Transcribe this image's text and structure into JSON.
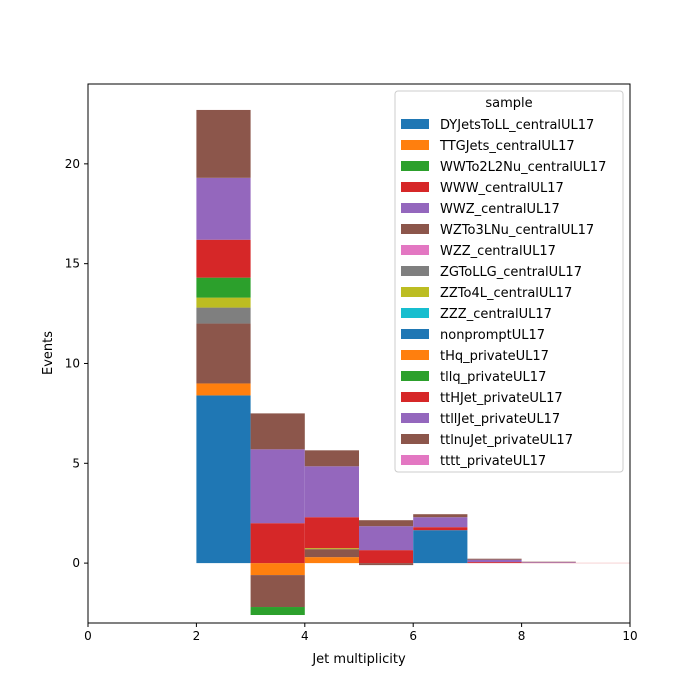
{
  "chart_data": {
    "type": "bar",
    "stacked": true,
    "histogram": true,
    "title": "",
    "xlabel": "Jet multiplicity",
    "ylabel": "Events",
    "xlim": [
      0,
      10
    ],
    "ylim": [
      -3,
      24
    ],
    "xticks": [
      "0",
      "2",
      "4",
      "6",
      "8",
      "10"
    ],
    "yticks": [
      "0",
      "5",
      "10",
      "15",
      "20"
    ],
    "bins": [
      [
        2,
        3
      ],
      [
        3,
        4
      ],
      [
        4,
        5
      ],
      [
        5,
        6
      ],
      [
        6,
        7
      ],
      [
        7,
        8
      ],
      [
        8,
        9
      ],
      [
        9,
        10
      ]
    ],
    "legend": {
      "title": "sample",
      "placement": "upper right"
    },
    "series": [
      {
        "name": "DYJetsToLL_centralUL17",
        "color": "#1f77b4",
        "values": [
          8.4,
          0,
          0,
          0,
          1.65,
          0,
          0,
          0
        ]
      },
      {
        "name": "TTGJets_centralUL17",
        "color": "#ff7f0e",
        "values": [
          0.6,
          -0.6,
          0.3,
          0,
          0,
          0,
          0,
          0
        ]
      },
      {
        "name": "WWTo2L2Nu_centralUL17",
        "color": "#2ca02c",
        "values": [
          0,
          0,
          0,
          0,
          0,
          0,
          0,
          0
        ]
      },
      {
        "name": "WWW_centralUL17",
        "color": "#d62728",
        "values": [
          0,
          0,
          0,
          0,
          0,
          0,
          0,
          0
        ]
      },
      {
        "name": "WWZ_centralUL17",
        "color": "#9467bd",
        "values": [
          0,
          0,
          0,
          0,
          0,
          0,
          0,
          0
        ]
      },
      {
        "name": "WZTo3LNu_centralUL17",
        "color": "#8c564b",
        "values": [
          3.0,
          -1.6,
          0.4,
          -0.1,
          0,
          0,
          0,
          0
        ]
      },
      {
        "name": "WZZ_centralUL17",
        "color": "#e377c2",
        "values": [
          0,
          0,
          0,
          0,
          0,
          0,
          0,
          0
        ]
      },
      {
        "name": "ZGToLLG_centralUL17",
        "color": "#7f7f7f",
        "values": [
          0.8,
          0,
          0,
          0,
          0,
          0,
          0,
          0
        ]
      },
      {
        "name": "ZZTo4L_centralUL17",
        "color": "#bcbd22",
        "values": [
          0.5,
          0,
          0.05,
          0,
          0,
          0,
          0,
          0
        ]
      },
      {
        "name": "ZZZ_centralUL17",
        "color": "#17becf",
        "values": [
          0,
          0,
          0,
          0,
          0,
          0,
          0,
          0
        ]
      },
      {
        "name": "nonpromptUL17",
        "color": "#1f77b4",
        "values": [
          0,
          0,
          0,
          0,
          0,
          0,
          0,
          0
        ]
      },
      {
        "name": "tHq_privateUL17",
        "color": "#ff7f0e",
        "values": [
          0,
          0,
          0,
          0,
          0,
          0,
          0,
          0
        ]
      },
      {
        "name": "tllq_privateUL17",
        "color": "#2ca02c",
        "values": [
          1.0,
          -0.4,
          0,
          0,
          0,
          0,
          0,
          0
        ]
      },
      {
        "name": "ttHJet_privateUL17",
        "color": "#d62728",
        "values": [
          1.9,
          2.0,
          1.55,
          0.65,
          0.15,
          0.05,
          0.02,
          0.01
        ]
      },
      {
        "name": "ttllJet_privateUL17",
        "color": "#9467bd",
        "values": [
          3.1,
          3.7,
          2.55,
          1.2,
          0.5,
          0.12,
          0.03,
          0.0
        ]
      },
      {
        "name": "ttlnuJet_privateUL17",
        "color": "#8c564b",
        "values": [
          3.4,
          1.8,
          0.8,
          0.3,
          0.15,
          0.05,
          0.02,
          0.0
        ]
      },
      {
        "name": "tttt_privateUL17",
        "color": "#e377c2",
        "values": [
          0,
          0,
          0,
          0,
          0,
          0,
          0,
          0
        ]
      }
    ]
  }
}
